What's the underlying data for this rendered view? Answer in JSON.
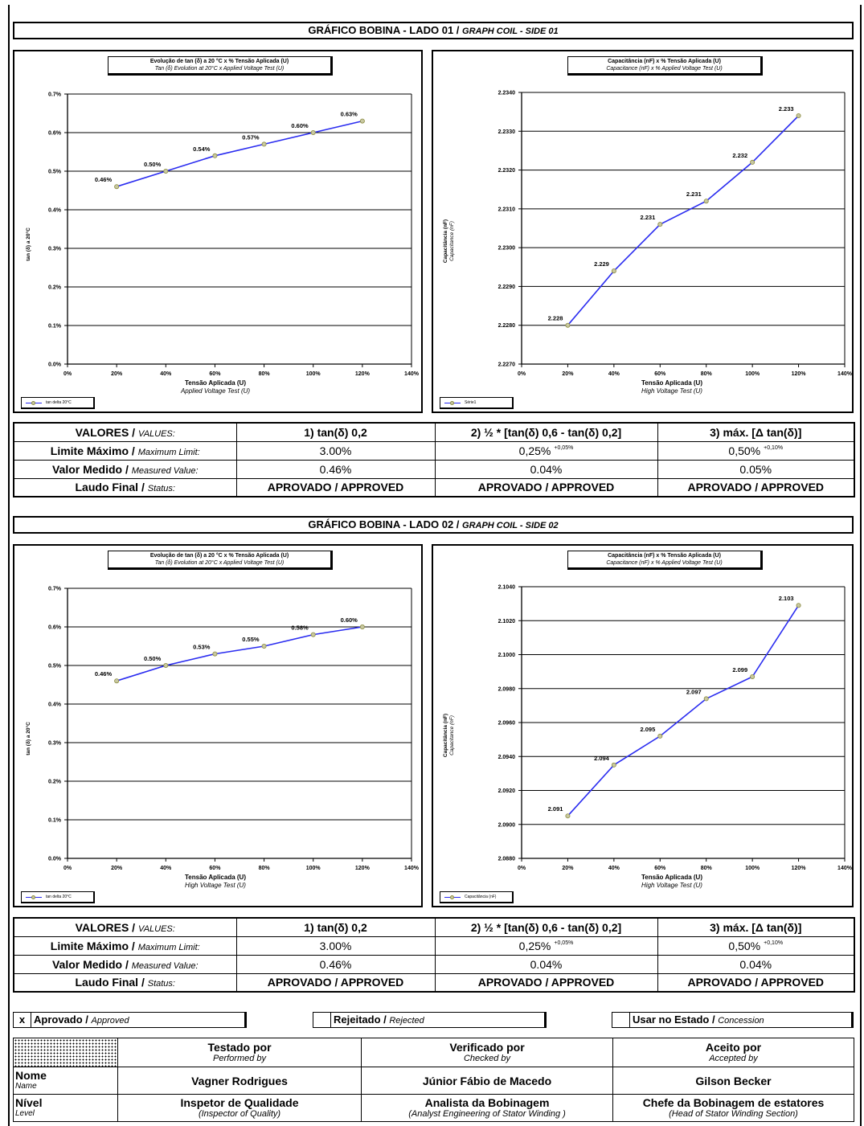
{
  "side1": {
    "header": {
      "title": "GRÁFICO BOBINA - LADO 01 / ",
      "title_it": "GRAPH COIL - SIDE 01"
    },
    "tan_chart": {
      "title_line1": "Evolução de tan (δ) a 20 °C x % Tensão Aplicada (U)",
      "title_line2": "Tan (δ) Evolution at 20°C x Applied Voltage Test (U)",
      "xlabel_line1": "Tensão Aplicada (U)",
      "xlabel_line2": "Applied Voltage Test (U)",
      "ylabel": "tan (δ) a 20°C",
      "legend": "tan delta 20°C"
    },
    "cap_chart": {
      "title_line1": "Capacitância (nF) x % Tensão Aplicada (U)",
      "title_line2": "Capacitance (nF) x % Applied Voltage Test (U)",
      "xlabel_line1": "Tensão Aplicada (U)",
      "xlabel_line2": "High Voltage Test (U)",
      "ylabel_line1": "Capacitância (nF)",
      "ylabel_line2": "Capacitance (nF)",
      "legend": "Série1"
    },
    "table": {
      "values_label": "VALORES / ",
      "values_label_it": "VALUES:",
      "h1": "1)  tan(δ) 0,2",
      "h2": "2)  ½ * [tan(δ) 0,6  - tan(δ) 0,2]",
      "h3": "3)  máx. [Δ tan(δ)]",
      "limit_label": "Limite Máximo / ",
      "limit_label_it": "Maximum Limit:",
      "limit1": "3.00%",
      "limit2": "0,25%",
      "limit2_sup": "+0,05%",
      "limit3": "0,50%",
      "limit3_sup": "+0,10%",
      "measured_label": "Valor Medido / ",
      "measured_label_it": "Measured Value:",
      "measured1": "0.46%",
      "measured2": "0.04%",
      "measured3": "0.05%",
      "status_label": "Laudo Final / ",
      "status_label_it": "Status:",
      "status1": "APROVADO / APPROVED",
      "status2": "APROVADO / APPROVED",
      "status3": "APROVADO / APPROVED"
    }
  },
  "side2": {
    "header": {
      "title": "GRÁFICO BOBINA - LADO 02 / ",
      "title_it": "GRAPH COIL - SIDE 02"
    },
    "tan_chart": {
      "title_line1": "Evolução de tan (δ) a 20 °C x % Tensão Aplicada (U)",
      "title_line2": "Tan (δ) Evolution at 20°C  x Applied Voltage Test (U)",
      "xlabel_line1": "Tensão Aplicada (U)",
      "xlabel_line2": "High Voltage Test (U)",
      "ylabel": "tan (δ) a 20°C",
      "legend": "tan delta 20°C"
    },
    "cap_chart": {
      "title_line1": "Capacitância (nF) x % Tensão Aplicada (U)",
      "title_line2": "Capacitance (nF) x % Applied Voltage Test (U)",
      "xlabel_line1": "Tensão Aplicada (U)",
      "xlabel_line2": "High Voltage Test (U)",
      "ylabel_line1": "Capacitância (nF)",
      "ylabel_line2": "Capacitance (nF)",
      "legend": "Capacitância (nF)"
    },
    "table": {
      "values_label": "VALORES / ",
      "values_label_it": "VALUES:",
      "h1": "1)  tan(δ) 0,2",
      "h2": "2)  ½ * [tan(δ) 0,6  - tan(δ) 0,2]",
      "h3": "3)  máx. [Δ tan(δ)]",
      "limit_label": "Limite Máximo / ",
      "limit_label_it": "Maximum Limit:",
      "limit1": "3.00%",
      "limit2": "0,25%",
      "limit2_sup": "+0,05%",
      "limit3": "0,50%",
      "limit3_sup": "+0,10%",
      "measured_label": "Valor Medido / ",
      "measured_label_it": "Measured Value:",
      "measured1": "0.46%",
      "measured2": "0.04%",
      "measured3": "0.04%",
      "status_label": "Laudo Final / ",
      "status_label_it": "Status:",
      "status1": "APROVADO / APPROVED",
      "status2": "APROVADO / APPROVED",
      "status3": "APROVADO / APPROVED"
    }
  },
  "status_options": {
    "approved_mark": "x",
    "approved": "Aprovado / ",
    "approved_it": "Approved",
    "rejected": "Rejeitado / ",
    "rejected_it": "Rejected",
    "concession": "Usar no Estado / ",
    "concession_it": "Concession"
  },
  "signatures": {
    "tested_by": "Testado por",
    "tested_by_en": "Performed by",
    "checked_by": "Verificado por",
    "checked_by_en": "Checked by",
    "accepted_by": "Aceito por",
    "accepted_by_en": "Accepted by",
    "name_label": "Nome",
    "name_label_en": "Name",
    "level_label": "Nível",
    "level_label_en": "Level",
    "tester_name": "Vagner Rodrigues",
    "checker_name": "Júnior Fábio de Macedo",
    "acceptor_name": "Gilson Becker",
    "tester_level": "Inspetor de Qualidade",
    "tester_level_en": "(Inspector of Quality)",
    "checker_level": "Analista da Bobinagem",
    "checker_level_en": "(Analyst Engineering of Stator Winding )",
    "acceptor_level": "Chefe da Bobinagem de estatores",
    "acceptor_level_en": "(Head of Stator Winding Section)"
  },
  "colors": {
    "line": "#2a2cf0",
    "marker_fill": "#c8c8a0",
    "marker_stroke": "#8a8a40"
  },
  "chart_data": [
    {
      "id": "side1_tan",
      "type": "line",
      "x": [
        20,
        40,
        60,
        80,
        100,
        120
      ],
      "x_ticks": [
        "0%",
        "20%",
        "40%",
        "60%",
        "80%",
        "100%",
        "120%",
        "140%"
      ],
      "xlim": [
        0,
        140
      ],
      "values": [
        0.46,
        0.5,
        0.54,
        0.57,
        0.6,
        0.63
      ],
      "labels": [
        "0.46%",
        "0.50%",
        "0.54%",
        "0.57%",
        "0.60%",
        "0.63%"
      ],
      "y_ticks": [
        "0.0%",
        "0.1%",
        "0.2%",
        "0.3%",
        "0.4%",
        "0.5%",
        "0.6%",
        "0.7%"
      ],
      "ylim": [
        0,
        0.7
      ],
      "grid": "horizontal"
    },
    {
      "id": "side1_cap",
      "type": "line",
      "x": [
        20,
        40,
        60,
        80,
        100,
        120
      ],
      "x_ticks": [
        "0%",
        "20%",
        "40%",
        "60%",
        "80%",
        "100%",
        "120%",
        "140%"
      ],
      "xlim": [
        0,
        140
      ],
      "values": [
        2.228,
        2.2294,
        2.2306,
        2.2312,
        2.2322,
        2.2334
      ],
      "labels": [
        "2.228",
        "2.229",
        "2.231",
        "2.231",
        "2.232",
        "2.233"
      ],
      "y_ticks": [
        "2.2270",
        "2.2280",
        "2.2290",
        "2.2300",
        "2.2310",
        "2.2320",
        "2.2330",
        "2.2340"
      ],
      "ylim": [
        2.227,
        2.234
      ],
      "grid": "horizontal"
    },
    {
      "id": "side2_tan",
      "type": "line",
      "x": [
        20,
        40,
        60,
        80,
        100,
        120
      ],
      "x_ticks": [
        "0%",
        "20%",
        "40%",
        "60%",
        "80%",
        "100%",
        "120%",
        "140%"
      ],
      "xlim": [
        0,
        140
      ],
      "values": [
        0.46,
        0.5,
        0.53,
        0.55,
        0.58,
        0.6
      ],
      "labels": [
        "0.46%",
        "0.50%",
        "0.53%",
        "0.55%",
        "0.58%",
        "0.60%"
      ],
      "y_ticks": [
        "0.0%",
        "0.1%",
        "0.2%",
        "0.3%",
        "0.4%",
        "0.5%",
        "0.6%",
        "0.7%"
      ],
      "ylim": [
        0,
        0.7
      ],
      "grid": "horizontal"
    },
    {
      "id": "side2_cap",
      "type": "line",
      "x": [
        20,
        40,
        60,
        80,
        100,
        120
      ],
      "x_ticks": [
        "0%",
        "20%",
        "40%",
        "60%",
        "80%",
        "100%",
        "120%",
        "140%"
      ],
      "xlim": [
        0,
        140
      ],
      "values": [
        2.0905,
        2.0935,
        2.0952,
        2.0974,
        2.0987,
        2.1029
      ],
      "labels": [
        "2.091",
        "2.094",
        "2.095",
        "2.097",
        "2.099",
        "2.103"
      ],
      "y_ticks": [
        "2.0880",
        "2.0900",
        "2.0920",
        "2.0940",
        "2.0960",
        "2.0980",
        "2.1000",
        "2.1020",
        "2.1040"
      ],
      "ylim": [
        2.088,
        2.104
      ],
      "grid": "horizontal"
    }
  ]
}
